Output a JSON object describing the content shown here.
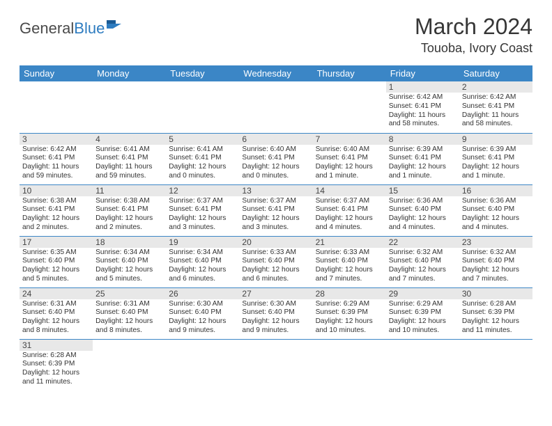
{
  "logo": {
    "textDark": "General",
    "textBlue": "Blue"
  },
  "title": "March 2024",
  "location": "Touoba, Ivory Coast",
  "colors": {
    "headerBg": "#3b86c6",
    "headerText": "#ffffff",
    "dayNumBg": "#e8e8e8",
    "rowBorder": "#3b86c6",
    "bodyText": "#333333",
    "titleText": "#363636"
  },
  "dayHeaders": [
    "Sunday",
    "Monday",
    "Tuesday",
    "Wednesday",
    "Thursday",
    "Friday",
    "Saturday"
  ],
  "weeks": [
    [
      null,
      null,
      null,
      null,
      null,
      {
        "n": "1",
        "sunrise": "6:42 AM",
        "sunset": "6:41 PM",
        "daylight": "11 hours and 58 minutes."
      },
      {
        "n": "2",
        "sunrise": "6:42 AM",
        "sunset": "6:41 PM",
        "daylight": "11 hours and 58 minutes."
      }
    ],
    [
      {
        "n": "3",
        "sunrise": "6:42 AM",
        "sunset": "6:41 PM",
        "daylight": "11 hours and 59 minutes."
      },
      {
        "n": "4",
        "sunrise": "6:41 AM",
        "sunset": "6:41 PM",
        "daylight": "11 hours and 59 minutes."
      },
      {
        "n": "5",
        "sunrise": "6:41 AM",
        "sunset": "6:41 PM",
        "daylight": "12 hours and 0 minutes."
      },
      {
        "n": "6",
        "sunrise": "6:40 AM",
        "sunset": "6:41 PM",
        "daylight": "12 hours and 0 minutes."
      },
      {
        "n": "7",
        "sunrise": "6:40 AM",
        "sunset": "6:41 PM",
        "daylight": "12 hours and 1 minute."
      },
      {
        "n": "8",
        "sunrise": "6:39 AM",
        "sunset": "6:41 PM",
        "daylight": "12 hours and 1 minute."
      },
      {
        "n": "9",
        "sunrise": "6:39 AM",
        "sunset": "6:41 PM",
        "daylight": "12 hours and 1 minute."
      }
    ],
    [
      {
        "n": "10",
        "sunrise": "6:38 AM",
        "sunset": "6:41 PM",
        "daylight": "12 hours and 2 minutes."
      },
      {
        "n": "11",
        "sunrise": "6:38 AM",
        "sunset": "6:41 PM",
        "daylight": "12 hours and 2 minutes."
      },
      {
        "n": "12",
        "sunrise": "6:37 AM",
        "sunset": "6:41 PM",
        "daylight": "12 hours and 3 minutes."
      },
      {
        "n": "13",
        "sunrise": "6:37 AM",
        "sunset": "6:41 PM",
        "daylight": "12 hours and 3 minutes."
      },
      {
        "n": "14",
        "sunrise": "6:37 AM",
        "sunset": "6:41 PM",
        "daylight": "12 hours and 4 minutes."
      },
      {
        "n": "15",
        "sunrise": "6:36 AM",
        "sunset": "6:40 PM",
        "daylight": "12 hours and 4 minutes."
      },
      {
        "n": "16",
        "sunrise": "6:36 AM",
        "sunset": "6:40 PM",
        "daylight": "12 hours and 4 minutes."
      }
    ],
    [
      {
        "n": "17",
        "sunrise": "6:35 AM",
        "sunset": "6:40 PM",
        "daylight": "12 hours and 5 minutes."
      },
      {
        "n": "18",
        "sunrise": "6:34 AM",
        "sunset": "6:40 PM",
        "daylight": "12 hours and 5 minutes."
      },
      {
        "n": "19",
        "sunrise": "6:34 AM",
        "sunset": "6:40 PM",
        "daylight": "12 hours and 6 minutes."
      },
      {
        "n": "20",
        "sunrise": "6:33 AM",
        "sunset": "6:40 PM",
        "daylight": "12 hours and 6 minutes."
      },
      {
        "n": "21",
        "sunrise": "6:33 AM",
        "sunset": "6:40 PM",
        "daylight": "12 hours and 7 minutes."
      },
      {
        "n": "22",
        "sunrise": "6:32 AM",
        "sunset": "6:40 PM",
        "daylight": "12 hours and 7 minutes."
      },
      {
        "n": "23",
        "sunrise": "6:32 AM",
        "sunset": "6:40 PM",
        "daylight": "12 hours and 7 minutes."
      }
    ],
    [
      {
        "n": "24",
        "sunrise": "6:31 AM",
        "sunset": "6:40 PM",
        "daylight": "12 hours and 8 minutes."
      },
      {
        "n": "25",
        "sunrise": "6:31 AM",
        "sunset": "6:40 PM",
        "daylight": "12 hours and 8 minutes."
      },
      {
        "n": "26",
        "sunrise": "6:30 AM",
        "sunset": "6:40 PM",
        "daylight": "12 hours and 9 minutes."
      },
      {
        "n": "27",
        "sunrise": "6:30 AM",
        "sunset": "6:40 PM",
        "daylight": "12 hours and 9 minutes."
      },
      {
        "n": "28",
        "sunrise": "6:29 AM",
        "sunset": "6:39 PM",
        "daylight": "12 hours and 10 minutes."
      },
      {
        "n": "29",
        "sunrise": "6:29 AM",
        "sunset": "6:39 PM",
        "daylight": "12 hours and 10 minutes."
      },
      {
        "n": "30",
        "sunrise": "6:28 AM",
        "sunset": "6:39 PM",
        "daylight": "12 hours and 11 minutes."
      }
    ],
    [
      {
        "n": "31",
        "sunrise": "6:28 AM",
        "sunset": "6:39 PM",
        "daylight": "12 hours and 11 minutes."
      },
      null,
      null,
      null,
      null,
      null,
      null
    ]
  ],
  "labels": {
    "sunrisePrefix": "Sunrise: ",
    "sunsetPrefix": "Sunset: ",
    "daylightPrefix": "Daylight: "
  }
}
